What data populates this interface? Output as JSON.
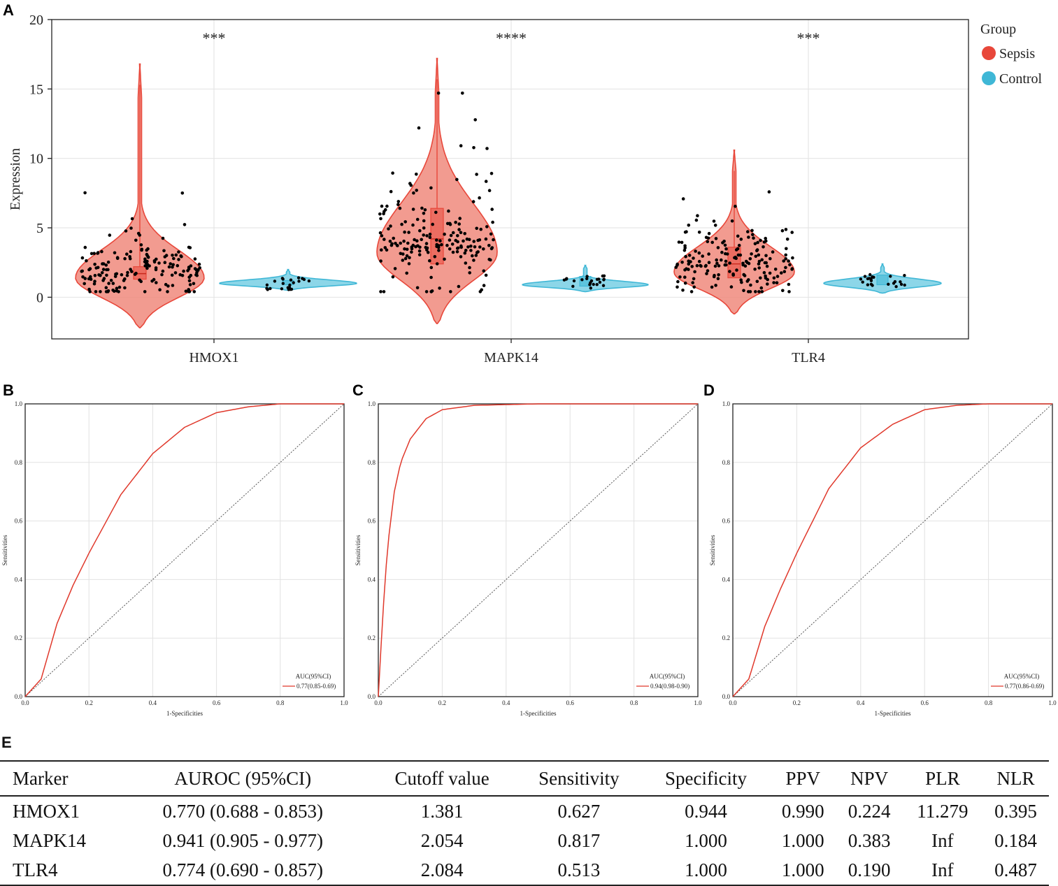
{
  "panels": {
    "A": "A",
    "B": "B",
    "C": "C",
    "D": "D",
    "E": "E"
  },
  "violin": {
    "ylabel": "Expression",
    "yticks": [
      0,
      5,
      10,
      15,
      20
    ],
    "ylim": [
      -3,
      20
    ],
    "genes": [
      "HMOX1",
      "MAPK14",
      "TLR4"
    ],
    "significance": [
      "***",
      "****",
      "***"
    ],
    "legend": {
      "title": "Group",
      "sepsis": "Sepsis",
      "control": "Control"
    },
    "colors": {
      "sepsis_fill": "#f08a7c",
      "sepsis_line": "#e8473a",
      "control_fill": "#7fd2e6",
      "control_line": "#3fb7d6",
      "legend_sepsis": "#e8473a",
      "legend_control": "#3fb7d6"
    }
  },
  "chart_data": [
    {
      "type": "violin",
      "title": "",
      "xlabel": "",
      "ylabel": "Expression",
      "ylim": [
        -3,
        20
      ],
      "categories": [
        "HMOX1",
        "MAPK14",
        "TLR4"
      ],
      "series": [
        {
          "name": "Sepsis",
          "range": [
            [
              -2.2,
              16.8
            ],
            [
              -1.9,
              17.2
            ],
            [
              -1.2,
              10.6
            ]
          ],
          "median": [
            1.7,
            4.2,
            2.4
          ],
          "q1": [
            1.3,
            2.4,
            1.4
          ],
          "q3": [
            2.2,
            6.4,
            3.6
          ]
        },
        {
          "name": "Control",
          "range": [
            [
              0.5,
              2.0
            ],
            [
              0.4,
              2.3
            ],
            [
              0.3,
              2.4
            ]
          ],
          "median": [
            1.0,
            1.1,
            1.2
          ],
          "q1": [
            0.9,
            0.8,
            0.9
          ],
          "q3": [
            1.2,
            1.5,
            1.6
          ]
        }
      ],
      "annotations": [
        "***",
        "****",
        "***"
      ]
    },
    {
      "type": "line",
      "title": "",
      "xlabel": "1-Specificities",
      "ylabel": "Sensitivities",
      "xlim": [
        0,
        1
      ],
      "ylim": [
        0,
        1
      ],
      "ticks": [
        "0.0",
        "0.2",
        "0.4",
        "0.6",
        "0.8",
        "1.0"
      ],
      "legend_title": "AUC(95%CI)",
      "legend_label": "0.77(0.85-0.69)",
      "series": [
        {
          "name": "HMOX1",
          "x": [
            0,
            0.05,
            0.1,
            0.15,
            0.2,
            0.3,
            0.4,
            0.5,
            0.6,
            0.7,
            0.8,
            0.9,
            1.0
          ],
          "y": [
            0,
            0.06,
            0.25,
            0.38,
            0.49,
            0.69,
            0.83,
            0.92,
            0.97,
            0.99,
            1.0,
            1.0,
            1.0
          ]
        }
      ]
    },
    {
      "type": "line",
      "title": "",
      "xlabel": "1-Specificities",
      "ylabel": "Sensitivities",
      "xlim": [
        0,
        1
      ],
      "ylim": [
        0,
        1
      ],
      "ticks": [
        "0.0",
        "0.2",
        "0.4",
        "0.6",
        "0.8",
        "1.0"
      ],
      "legend_title": "AUC(95%CI)",
      "legend_label": "0.94(0.98-0.90)",
      "series": [
        {
          "name": "MAPK14",
          "x": [
            0,
            0.01,
            0.02,
            0.03,
            0.05,
            0.07,
            0.1,
            0.15,
            0.2,
            0.3,
            0.5,
            0.7,
            1.0
          ],
          "y": [
            0,
            0.2,
            0.38,
            0.52,
            0.7,
            0.8,
            0.88,
            0.95,
            0.98,
            0.995,
            1.0,
            1.0,
            1.0
          ]
        }
      ]
    },
    {
      "type": "line",
      "title": "",
      "xlabel": "1-Specificities",
      "ylabel": "Sensitivities",
      "xlim": [
        0,
        1
      ],
      "ylim": [
        0,
        1
      ],
      "ticks": [
        "0.0",
        "0.2",
        "0.4",
        "0.6",
        "0.8",
        "1.0"
      ],
      "legend_title": "AUC(95%CI)",
      "legend_label": "0.77(0.86-0.69)",
      "series": [
        {
          "name": "TLR4",
          "x": [
            0,
            0.05,
            0.1,
            0.15,
            0.2,
            0.3,
            0.4,
            0.5,
            0.6,
            0.7,
            0.8,
            0.9,
            1.0
          ],
          "y": [
            0,
            0.06,
            0.24,
            0.37,
            0.49,
            0.71,
            0.85,
            0.93,
            0.98,
            0.995,
            1.0,
            1.0,
            1.0
          ]
        }
      ]
    }
  ],
  "roc_common": {
    "xlabel": "1-Specificities",
    "ylabel": "Sensitivities",
    "ticks": [
      "0.0",
      "0.2",
      "0.4",
      "0.6",
      "0.8",
      "1.0"
    ],
    "legend_title": "AUC(95%CI)",
    "colors": {
      "curve": "#e0382b",
      "diag": "#555555"
    }
  },
  "table": {
    "headers": [
      "Marker",
      "AUROC (95%CI)",
      "Cutoff value",
      "Sensitivity",
      "Specificity",
      "PPV",
      "NPV",
      "PLR",
      "NLR"
    ],
    "rows": [
      [
        "HMOX1",
        "0.770 (0.688 - 0.853)",
        "1.381",
        "0.627",
        "0.944",
        "0.990",
        "0.224",
        "11.279",
        "0.395"
      ],
      [
        "MAPK14",
        "0.941 (0.905 - 0.977)",
        "2.054",
        "0.817",
        "1.000",
        "1.000",
        "0.383",
        "Inf",
        "0.184"
      ],
      [
        "TLR4",
        "0.774 (0.690 - 0.857)",
        "2.084",
        "0.513",
        "1.000",
        "1.000",
        "0.190",
        "Inf",
        "0.487"
      ]
    ]
  }
}
